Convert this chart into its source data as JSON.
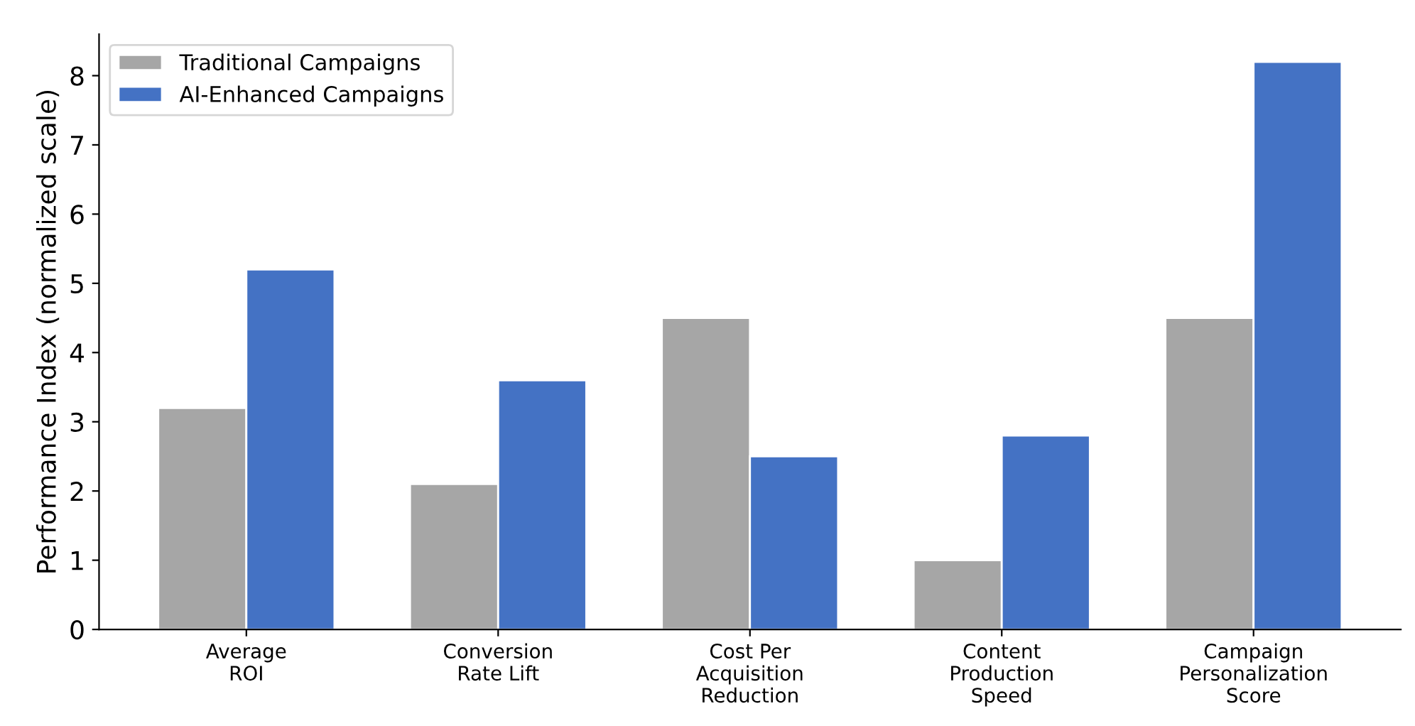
{
  "chart_data": {
    "type": "bar",
    "ylabel": "Performance Index (normalized scale)",
    "categories": [
      "Average\nROI",
      "Conversion\nRate Lift",
      "Cost Per\nAcquisition\nReduction",
      "Content\nProduction\nSpeed",
      "Campaign\nPersonalization\nScore"
    ],
    "series": [
      {
        "name": "Traditional Campaigns",
        "color": "#a6a6a6",
        "values": [
          3.2,
          2.1,
          4.5,
          1.0,
          4.5
        ]
      },
      {
        "name": "AI-Enhanced Campaigns",
        "color": "#4472c4",
        "values": [
          5.2,
          3.6,
          2.5,
          2.8,
          8.2
        ]
      }
    ],
    "ylim": [
      0,
      8.6
    ],
    "yticks": [
      0,
      1,
      2,
      3,
      4,
      5,
      6,
      7,
      8
    ],
    "legend": "top left",
    "grid": false
  }
}
